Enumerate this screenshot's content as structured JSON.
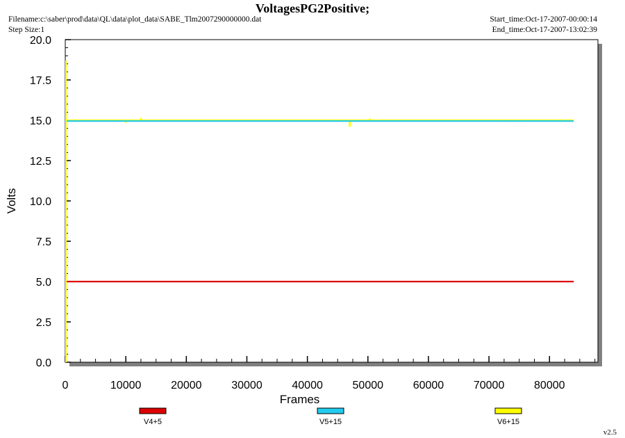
{
  "header": {
    "title": "VoltagesPG2Positive;",
    "filename": "Filename:c:\\saber\\prod\\data\\QL\\data\\plot_data\\SABE_Tlm2007290000000.dat",
    "step_size": "Step Size:1",
    "start_time": "Start_time:Oct-17-2007-00:00:14",
    "end_time": "End_time:Oct-17-2007-13:02:39"
  },
  "version": "v2.5",
  "colors": {
    "V4+5": "#dd0000",
    "V5+15": "#22ccee",
    "V6+15": "#ffff00",
    "shadow": "#808080"
  },
  "chart_data": {
    "type": "line",
    "title": "VoltagesPG2Positive;",
    "xlabel": "Frames",
    "ylabel": "Volts",
    "xlim": [
      0,
      88000
    ],
    "ylim": [
      0,
      20
    ],
    "x_ticks": [
      0,
      10000,
      20000,
      30000,
      40000,
      50000,
      60000,
      70000,
      80000
    ],
    "y_ticks": [
      "0.0",
      "2.5",
      "5.0",
      "7.5",
      "10.0",
      "12.5",
      "15.0",
      "17.5",
      "20.0"
    ],
    "legend_position": "bottom",
    "series": [
      {
        "name": "V4+5",
        "x": [
          0,
          84000
        ],
        "y": [
          5.0,
          5.0
        ]
      },
      {
        "name": "V5+15",
        "x": [
          0,
          84000
        ],
        "y": [
          14.95,
          14.95
        ]
      },
      {
        "name": "V6+15",
        "x": [
          0,
          84000
        ],
        "y": [
          15.0,
          15.0
        ],
        "spikes": [
          {
            "x": 10000,
            "y": 14.85
          },
          {
            "x": 12500,
            "y": 15.15
          },
          {
            "x": 47000,
            "y": 14.6
          },
          {
            "x": 50300,
            "y": 15.1
          },
          {
            "x": 73800,
            "y": 14.9
          }
        ]
      }
    ]
  }
}
